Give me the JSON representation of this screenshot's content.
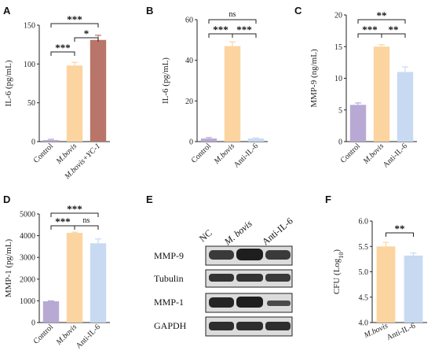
{
  "panels": {
    "A": "A",
    "B": "B",
    "C": "C",
    "D": "D",
    "E": "E",
    "F": "F"
  },
  "chart_data": [
    {
      "panel": "A",
      "type": "bar",
      "ylabel": "IL-6 (pg/mL)",
      "ylim": [
        0,
        150
      ],
      "yticks": [
        0,
        50,
        100,
        150
      ],
      "categories": [
        "Control",
        "M.bovis",
        "M.bovis+YC-1"
      ],
      "italic": [
        false,
        true,
        true
      ],
      "values": [
        2,
        98,
        131
      ],
      "errors": [
        1,
        4,
        6
      ],
      "colors": [
        "#b8a9d4",
        "#fcd4a0",
        "#b97569"
      ],
      "brackets": [
        {
          "from": 0,
          "to": 2,
          "label": "***",
          "level": 2
        },
        {
          "from": 0,
          "to": 1,
          "label": "***",
          "level": 0
        },
        {
          "from": 1,
          "to": 2,
          "label": "*",
          "level": 1
        }
      ]
    },
    {
      "panel": "B",
      "type": "bar",
      "ylabel": "IL-6 (pg/mL)",
      "ylim": [
        0,
        60
      ],
      "yticks": [
        0,
        20,
        40,
        60
      ],
      "categories": [
        "Control",
        "M.bovis",
        "Anti-IL-6"
      ],
      "italic": [
        false,
        true,
        false
      ],
      "values": [
        1.5,
        47,
        1.5
      ],
      "errors": [
        0.5,
        2,
        0.3
      ],
      "colors": [
        "#b8a9d4",
        "#fcd4a0",
        "#c8daf2"
      ],
      "brackets": [
        {
          "from": 0,
          "to": 2,
          "label": "ns",
          "level": 1
        },
        {
          "from": 0,
          "to": 1,
          "label": "***",
          "level": 0
        },
        {
          "from": 1,
          "to": 2,
          "label": "***",
          "level": 0
        }
      ]
    },
    {
      "panel": "C",
      "type": "bar",
      "ylabel": "MMP-9 (ng/mL)",
      "ylim": [
        0,
        20
      ],
      "yticks": [
        0,
        5,
        10,
        15,
        20
      ],
      "categories": [
        "Control",
        "M.bovis",
        "Anti-IL-6"
      ],
      "italic": [
        false,
        true,
        false
      ],
      "values": [
        5.8,
        15.0,
        11.0
      ],
      "errors": [
        0.3,
        0.3,
        0.8
      ],
      "colors": [
        "#b8a9d4",
        "#fcd4a0",
        "#c8daf2"
      ],
      "brackets": [
        {
          "from": 0,
          "to": 2,
          "label": "**",
          "level": 1
        },
        {
          "from": 0,
          "to": 1,
          "label": "***",
          "level": 0
        },
        {
          "from": 1,
          "to": 2,
          "label": "**",
          "level": 0
        }
      ]
    },
    {
      "panel": "D",
      "type": "bar",
      "ylabel": "MMP-1 (pg/mL)",
      "ylim": [
        0,
        5000
      ],
      "yticks": [
        0,
        1000,
        2000,
        3000,
        4000,
        5000
      ],
      "categories": [
        "Control",
        "M.bovis",
        "Anti-IL-6"
      ],
      "italic": [
        false,
        true,
        false
      ],
      "values": [
        980,
        4130,
        3650
      ],
      "errors": [
        20,
        30,
        200
      ],
      "colors": [
        "#b8a9d4",
        "#fcd4a0",
        "#c8daf2"
      ],
      "brackets": [
        {
          "from": 0,
          "to": 2,
          "label": "***",
          "level": 1
        },
        {
          "from": 0,
          "to": 1,
          "label": "***",
          "level": 0
        },
        {
          "from": 1,
          "to": 2,
          "label": "ns",
          "level": 0
        }
      ]
    },
    {
      "panel": "F",
      "type": "bar",
      "ylabel": "CFU (Log10)",
      "ylim": [
        4.0,
        6.0
      ],
      "yticks": [
        4.0,
        4.5,
        5.0,
        5.5,
        6.0
      ],
      "categories": [
        "M.bovis",
        "Anti-IL-6"
      ],
      "italic": [
        true,
        false
      ],
      "values": [
        5.5,
        5.32
      ],
      "errors": [
        0.08,
        0.05
      ],
      "colors": [
        "#fcd4a0",
        "#c8daf2"
      ],
      "brackets": [
        {
          "from": 0,
          "to": 1,
          "label": "**",
          "level": 0
        }
      ]
    }
  ],
  "blot": {
    "columns": [
      "NC",
      "M. bovis",
      "Anti-IL-6"
    ],
    "columns_italic": [
      false,
      true,
      false
    ],
    "rows": [
      "MMP-9",
      "Tubulin",
      "MMP-1",
      "GAPDH"
    ]
  }
}
